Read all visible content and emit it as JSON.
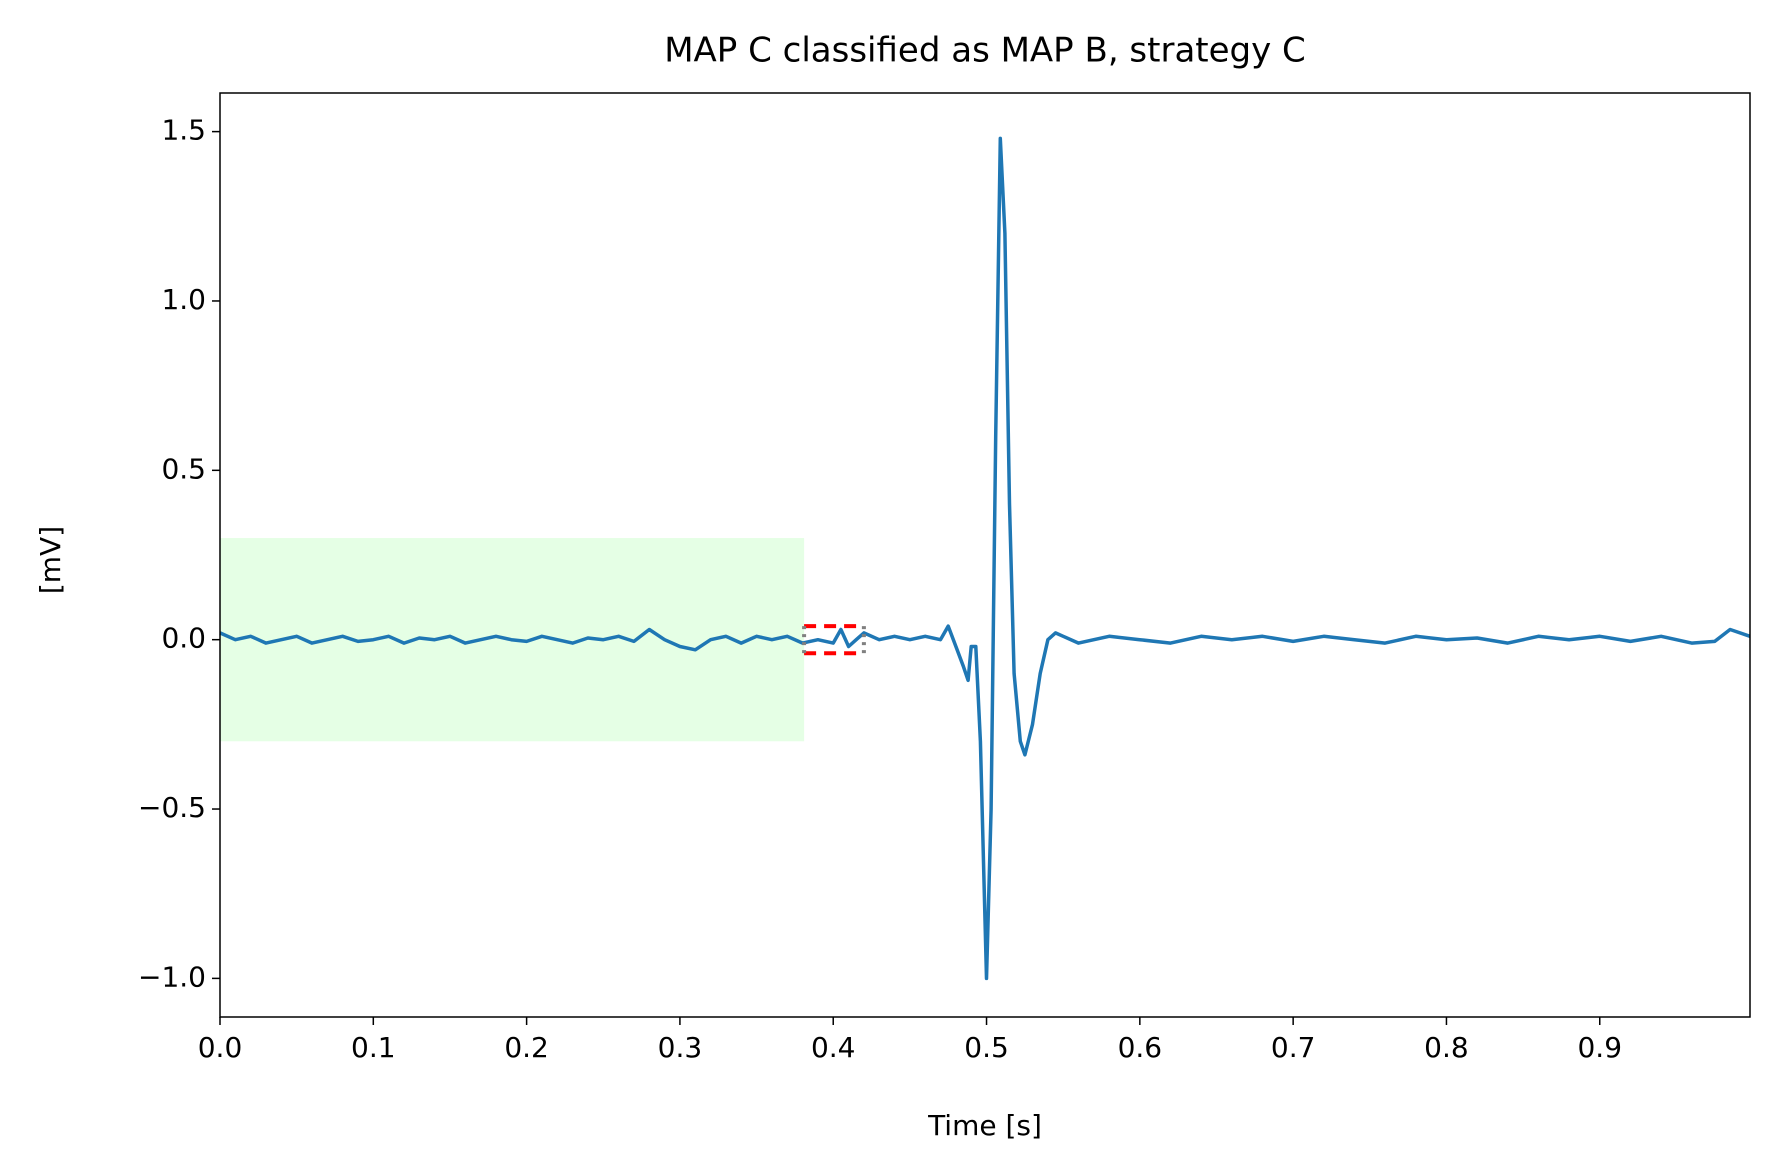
{
  "chart_data": {
    "type": "line",
    "title": "MAP C classified as MAP B, strategy C",
    "xlabel": "Time [s]",
    "ylabel": "[mV]",
    "color": "#1f77b4",
    "xlim": [
      0,
      0.998
    ],
    "ylim": [
      -1.114,
      1.614
    ],
    "xticks": [
      {
        "value": 0,
        "label": "0.0"
      },
      0.1,
      0.2,
      0.3,
      0.4,
      0.5,
      0.6,
      0.7,
      0.8,
      0.9
    ],
    "yticks": [
      {
        "value": -1,
        "label": "−1.0"
      },
      {
        "value": -0.5,
        "label": "−0.5"
      },
      {
        "value": 0,
        "label": "0.0"
      },
      0.5,
      {
        "value": 1,
        "label": "1.0"
      },
      1.5
    ],
    "spans": [
      {
        "x": [
          0,
          0.381
        ],
        "y": [
          -0.3,
          0.3
        ],
        "color": "#e5ffe5"
      }
    ],
    "boxes": [
      {
        "x": [
          0.381,
          0.42
        ],
        "y": [
          -0.04,
          0.04
        ],
        "color": "#ff0000"
      }
    ],
    "x": [
      0,
      0.01,
      0.02,
      0.03,
      0.04,
      0.05,
      0.06,
      0.07,
      0.08,
      0.09,
      0.1,
      0.11,
      0.12,
      0.13,
      0.14,
      0.15,
      0.16,
      0.17,
      0.18,
      0.19,
      0.2,
      0.21,
      0.22,
      0.23,
      0.24,
      0.25,
      0.26,
      0.27,
      0.28,
      0.29,
      0.3,
      0.31,
      0.32,
      0.33,
      0.34,
      0.35,
      0.36,
      0.37,
      0.38,
      0.39,
      0.4,
      0.405,
      0.41,
      0.415,
      0.42,
      0.43,
      0.44,
      0.45,
      0.46,
      0.47,
      0.475,
      0.48,
      0.485,
      0.488,
      0.49,
      0.493,
      0.496,
      0.5,
      0.503,
      0.506,
      0.509,
      0.512,
      0.515,
      0.518,
      0.522,
      0.525,
      0.53,
      0.535,
      0.54,
      0.545,
      0.55,
      0.56,
      0.58,
      0.6,
      0.62,
      0.64,
      0.66,
      0.68,
      0.7,
      0.72,
      0.74,
      0.76,
      0.78,
      0.8,
      0.82,
      0.84,
      0.86,
      0.88,
      0.9,
      0.92,
      0.94,
      0.96,
      0.975,
      0.985,
      0.998
    ],
    "values": [
      0.02,
      0,
      0.01,
      -0.01,
      0,
      0.01,
      -0.01,
      0,
      0.01,
      -0.005,
      0,
      0.01,
      -0.01,
      0.005,
      0,
      0.01,
      -0.01,
      0,
      0.01,
      0,
      -0.005,
      0.01,
      0,
      -0.01,
      0.005,
      0,
      0.01,
      -0.005,
      0.03,
      0,
      -0.02,
      -0.03,
      0,
      0.01,
      -0.01,
      0.01,
      0,
      0.01,
      -0.01,
      0,
      -0.01,
      0.03,
      -0.02,
      0,
      0.02,
      0,
      0.01,
      0,
      0.01,
      0,
      0.04,
      -0.02,
      -0.08,
      -0.12,
      -0.02,
      -0.02,
      -0.3,
      -1.0,
      -0.5,
      0.6,
      1.48,
      1.2,
      0.4,
      -0.1,
      -0.3,
      -0.34,
      -0.25,
      -0.1,
      0,
      0.02,
      0.01,
      -0.01,
      0.01,
      0,
      -0.01,
      0.01,
      0,
      0.01,
      -0.005,
      0.01,
      0,
      -0.01,
      0.01,
      0,
      0.005,
      -0.01,
      0.01,
      0,
      0.01,
      -0.005,
      0.01,
      -0.01,
      -0.005,
      0.03,
      0.01
    ]
  }
}
